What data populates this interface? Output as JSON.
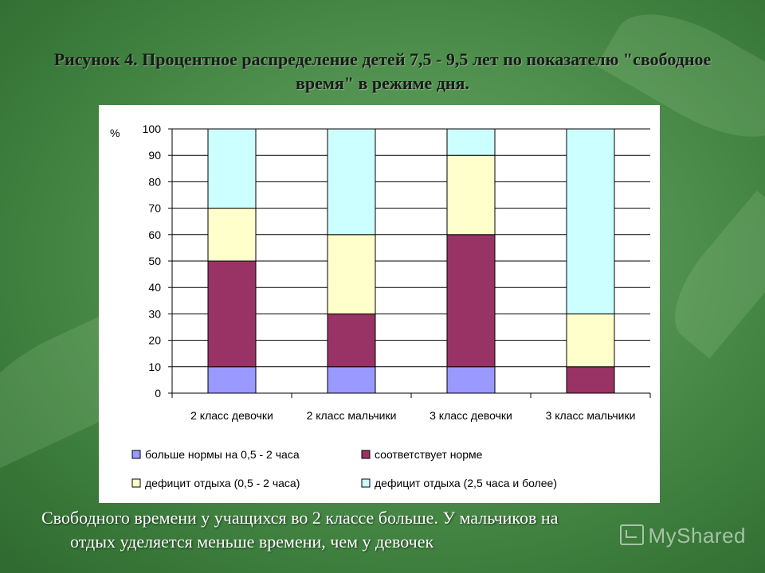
{
  "slide": {
    "title": "Рисунок 4. Процентное распределение детей 7,5 - 9,5 лет по показателю \"свободное время\" в режиме дня.",
    "caption_line1": "Свободного времени у учащихся во 2  классе больше. У мальчиков  на",
    "caption_line2": "отдых уделяется меньше времени, чем у девочек",
    "watermark": "MyShared"
  },
  "chart_data": {
    "type": "bar",
    "stacked": true,
    "title": "Рисунок 4. Процентное распределение детей 7,5 - 9,5 лет по показателю \"свободное время\" в режиме дня.",
    "ylabel": "%",
    "xlabel": "",
    "ylim": [
      0,
      100
    ],
    "yticks": [
      "0",
      "10",
      "20",
      "30",
      "40",
      "50",
      "60",
      "70",
      "80",
      "90",
      "100"
    ],
    "grid": true,
    "legend_position": "bottom",
    "categories": [
      "2 класс девочки",
      "2 класс мальчики",
      "3 класс девочки",
      "3 класс мальчики"
    ],
    "series": [
      {
        "name": "больше нормы на 0,5 - 2 часа",
        "values": [
          10,
          10,
          10,
          0
        ],
        "color": "#9999ff"
      },
      {
        "name": "соответствует норме",
        "values": [
          40,
          20,
          50,
          10
        ],
        "color": "#993366"
      },
      {
        "name": "дефицит отдыха (0,5 - 2 часа)",
        "values": [
          20,
          30,
          30,
          20
        ],
        "color": "#ffffcc"
      },
      {
        "name": "дефицит отдыха (2,5 часа и более)",
        "values": [
          30,
          40,
          10,
          70
        ],
        "color": "#ccffff"
      }
    ]
  }
}
